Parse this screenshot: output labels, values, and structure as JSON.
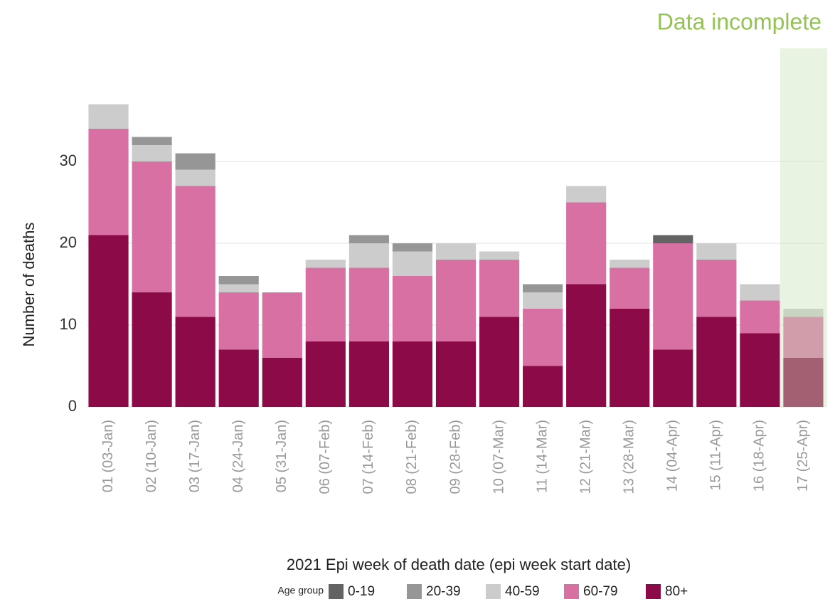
{
  "chart_data": {
    "type": "stacked_bar",
    "annotation": "Data incomplete",
    "x_label": "2021 Epi week of death date (epi week start date)",
    "y_label": "Number of deaths",
    "legend_title": "Age group",
    "categories": [
      "01 (03-Jan)",
      "02 (10-Jan)",
      "03 (17-Jan)",
      "04 (24-Jan)",
      "05 (31-Jan)",
      "06 (07-Feb)",
      "07 (14-Feb)",
      "08 (21-Feb)",
      "09 (28-Feb)",
      "10 (07-Mar)",
      "11 (14-Mar)",
      "12 (21-Mar)",
      "13 (28-Mar)",
      "14 (04-Apr)",
      "15 (11-Apr)",
      "16 (18-Apr)",
      "17 (25-Apr)"
    ],
    "series": [
      {
        "name": "0-19",
        "color": "#636363",
        "values": [
          0,
          0,
          0,
          0,
          0,
          0,
          0,
          0,
          0,
          0,
          0,
          0,
          0,
          1,
          0,
          0,
          0
        ]
      },
      {
        "name": "20-39",
        "color": "#969696",
        "values": [
          0,
          1,
          2,
          1,
          0,
          0,
          1,
          1,
          0,
          0,
          1,
          0,
          0,
          0,
          0,
          0,
          0
        ]
      },
      {
        "name": "40-59",
        "color": "#cccccc",
        "values": [
          3,
          2,
          2,
          1,
          0,
          1,
          3,
          3,
          2,
          1,
          2,
          2,
          1,
          0,
          2,
          2,
          1
        ]
      },
      {
        "name": "60-79",
        "color": "#d970a3",
        "values": [
          13,
          16,
          16,
          7,
          8,
          9,
          9,
          8,
          10,
          7,
          7,
          10,
          5,
          13,
          7,
          4,
          5
        ]
      },
      {
        "name": "80+",
        "color": "#8b0a47",
        "values": [
          21,
          14,
          11,
          7,
          6,
          8,
          8,
          8,
          8,
          11,
          5,
          15,
          12,
          7,
          11,
          9,
          6
        ]
      }
    ],
    "ylim": [
      0,
      38
    ],
    "yticks": [
      0,
      10,
      20,
      30
    ],
    "grid": true
  }
}
